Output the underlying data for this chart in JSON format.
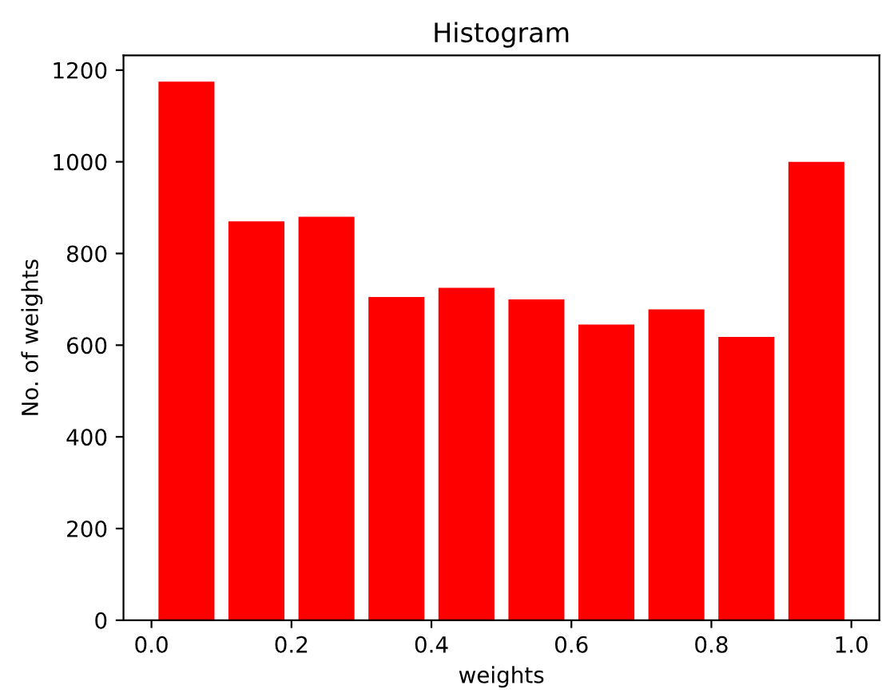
{
  "chart_data": {
    "type": "histogram",
    "title": "Histogram",
    "xlabel": "weights",
    "ylabel": "No. of weights",
    "bins": [
      0.0,
      0.1,
      0.2,
      0.3,
      0.4,
      0.5,
      0.6,
      0.7,
      0.8,
      0.9,
      1.0
    ],
    "values": [
      1175,
      870,
      880,
      705,
      725,
      700,
      645,
      678,
      618,
      1000
    ],
    "color": "#ff0000",
    "xlim": [
      -0.04,
      1.04
    ],
    "xticks": [
      {
        "value": 0.0,
        "label": "0.0"
      },
      {
        "value": 0.2,
        "label": "0.2"
      },
      {
        "value": 0.4,
        "label": "0.4"
      },
      {
        "value": 0.6,
        "label": "0.6"
      },
      {
        "value": 0.8,
        "label": "0.8"
      },
      {
        "value": 1.0,
        "label": "1.0"
      }
    ],
    "ylim": [
      0,
      1232
    ],
    "yticks": [
      0,
      200,
      400,
      600,
      800,
      1000,
      1200
    ],
    "grid": false
  }
}
